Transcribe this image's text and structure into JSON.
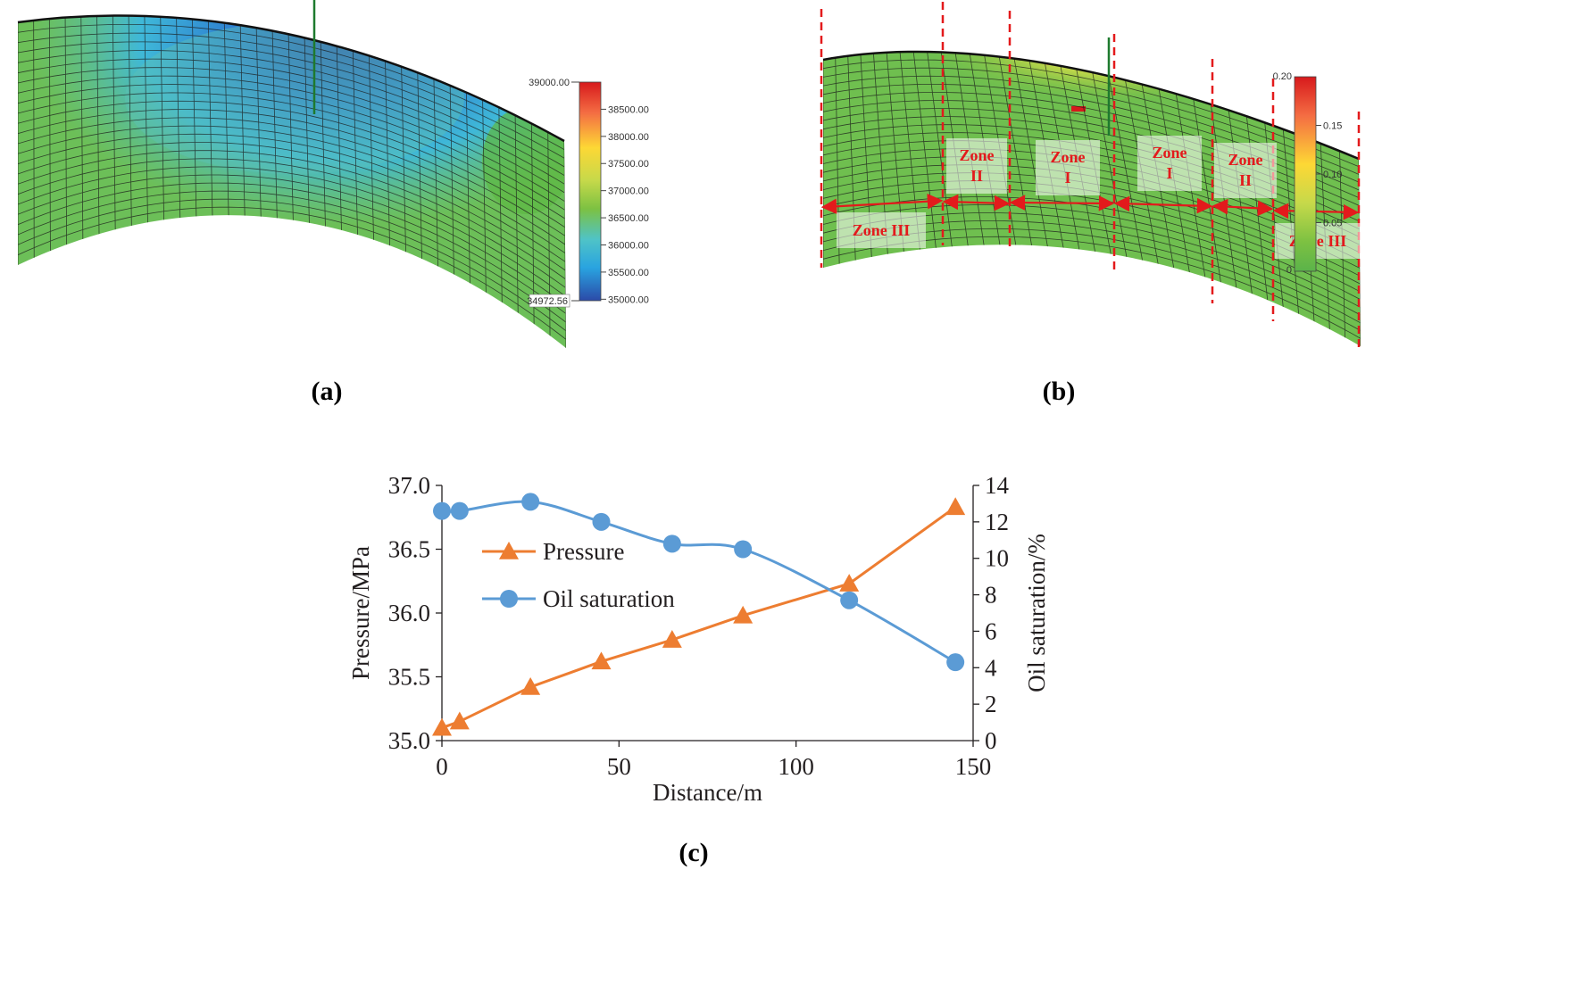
{
  "panel_a": {
    "label": "(a)",
    "colorbar": {
      "max_label": "39000.00",
      "min_label": "34972.56",
      "ticks": [
        "38500.00",
        "38000.00",
        "37500.00",
        "37000.00",
        "36500.00",
        "36000.00",
        "35500.00",
        "35000.00"
      ],
      "colors": [
        "#d7191c",
        "#f46d43",
        "#fdd835",
        "#c6d94a",
        "#7cc142",
        "#4fc3c7",
        "#29a3e0",
        "#2b4aa8"
      ]
    }
  },
  "panel_b": {
    "label": "(b)",
    "colorbar": {
      "max_label": "0.20",
      "min_label": "0",
      "ticks": [
        "0.15",
        "0.10",
        "0.05"
      ],
      "colors": [
        "#d7191c",
        "#f46d43",
        "#fdd835",
        "#c6d94a",
        "#7cc142",
        "#5bb34a"
      ]
    },
    "zones": {
      "zone_iii_left": "Zone III",
      "zone_ii_left_line1": "Zone",
      "zone_ii_left_line2": "II",
      "zone_i_left_line1": "Zone",
      "zone_i_left_line2": "I",
      "zone_i_right_line1": "Zone",
      "zone_i_right_line2": "I",
      "zone_ii_right_line1": "Zone",
      "zone_ii_right_line2": "II",
      "zone_iii_right": "Zone III"
    }
  },
  "panel_c": {
    "label": "(c)"
  },
  "chart_data": {
    "type": "line",
    "title": "",
    "xlabel": "Distance/m",
    "ylabel": "Pressure/MPa",
    "y2label": "Oil saturation/%",
    "xlim": [
      0,
      150
    ],
    "ylim": [
      35.0,
      37.0
    ],
    "y2lim": [
      0,
      14
    ],
    "x_ticks": [
      "0",
      "50",
      "100",
      "150"
    ],
    "y_ticks": [
      "35.0",
      "35.5",
      "36.0",
      "36.5",
      "37.0"
    ],
    "y2_ticks": [
      "0",
      "2",
      "4",
      "6",
      "8",
      "10",
      "12",
      "14"
    ],
    "legend": [
      "Pressure",
      "Oil saturation"
    ],
    "series": [
      {
        "name": "Pressure",
        "axis": "left",
        "color": "#ed7d31",
        "marker": "triangle",
        "x": [
          0,
          5,
          25,
          45,
          65,
          85,
          115,
          145
        ],
        "values": [
          35.1,
          35.15,
          35.42,
          35.62,
          35.79,
          35.98,
          36.23,
          36.83
        ]
      },
      {
        "name": "Oil saturation",
        "axis": "right",
        "color": "#5b9bd5",
        "marker": "circle",
        "x": [
          0,
          5,
          25,
          45,
          65,
          85,
          115,
          145
        ],
        "values": [
          12.6,
          12.6,
          13.1,
          12.0,
          10.8,
          10.5,
          7.7,
          4.3
        ]
      }
    ]
  }
}
